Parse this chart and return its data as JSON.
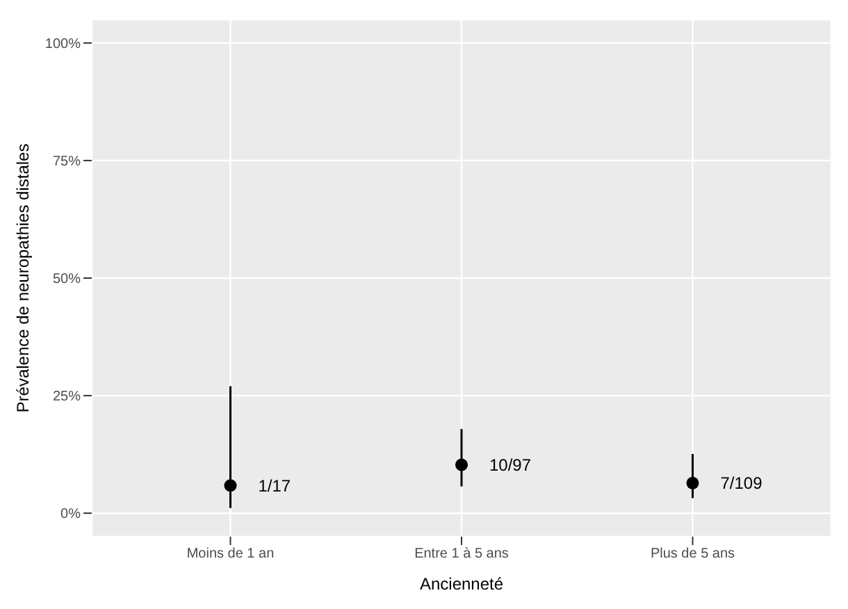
{
  "chart_data": {
    "type": "scatter",
    "xlabel": "Ancienneté",
    "ylabel": "Prévalence de neuropathies distales",
    "categories": [
      "Moins de 1 an",
      "Entre 1 à 5 ans",
      "Plus de 5 ans"
    ],
    "series": [
      {
        "color": "#000000",
        "values": [
          5.9,
          10.3,
          6.4
        ],
        "errors": [
          [
            1.1,
            27
          ],
          [
            5.7,
            17.9
          ],
          [
            3.2,
            12.6
          ]
        ]
      }
    ],
    "ylim": [
      -5,
      105
    ],
    "yticks": [
      {
        "value": 0,
        "label": "0%"
      },
      {
        "value": 25,
        "label": "25%"
      },
      {
        "value": 50,
        "label": "50%"
      },
      {
        "value": 75,
        "label": "75%"
      },
      {
        "value": 100,
        "label": "100%"
      }
    ],
    "grid": true,
    "marker": "circle",
    "annotations": [
      {
        "text": "1/17",
        "x": "Moins de 1 an",
        "y": 5.9
      },
      {
        "text": "10/97",
        "x": "Entre 1 à 5 ans",
        "y": 10.3
      },
      {
        "text": "7/109",
        "x": "Plus de 5 ans",
        "y": 6.4
      }
    ]
  }
}
